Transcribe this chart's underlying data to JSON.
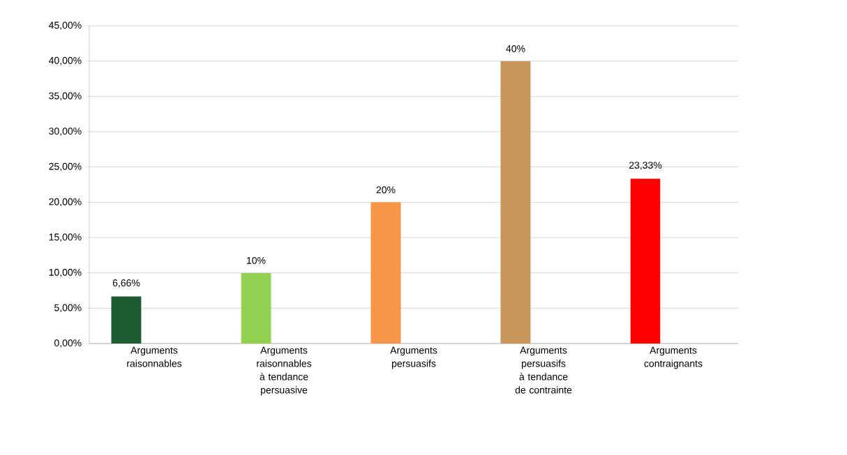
{
  "chart_data": {
    "type": "bar",
    "categories": [
      "Arguments raisonnables",
      "Arguments raisonnables à tendance persuasive",
      "Arguments persuasifs",
      "Arguments persuasifs à tendance de contrainte",
      "Arguments contraignants"
    ],
    "values": [
      6.66,
      10,
      20,
      40,
      23.33
    ],
    "colors": [
      "#1e5a32",
      "#92d050",
      "#f79646",
      "#c8965a",
      "#ff0000"
    ],
    "value_labels": [
      "6,66%",
      "10%",
      "20%",
      "40%",
      "23,33%"
    ],
    "ylim": [
      0,
      45
    ],
    "yticks": [
      {
        "value": 0,
        "label": "0,00%"
      },
      {
        "value": 5,
        "label": "5,00%"
      },
      {
        "value": 10,
        "label": "10,00%"
      },
      {
        "value": 15,
        "label": "15,00%"
      },
      {
        "value": 20,
        "label": "20,00%"
      },
      {
        "value": 25,
        "label": "25,00%"
      },
      {
        "value": 30,
        "label": "30,00%"
      },
      {
        "value": 35,
        "label": "35,00%"
      },
      {
        "value": 40,
        "label": "40,00%"
      },
      {
        "value": 45,
        "label": "45,00%"
      }
    ],
    "grid": "y"
  }
}
